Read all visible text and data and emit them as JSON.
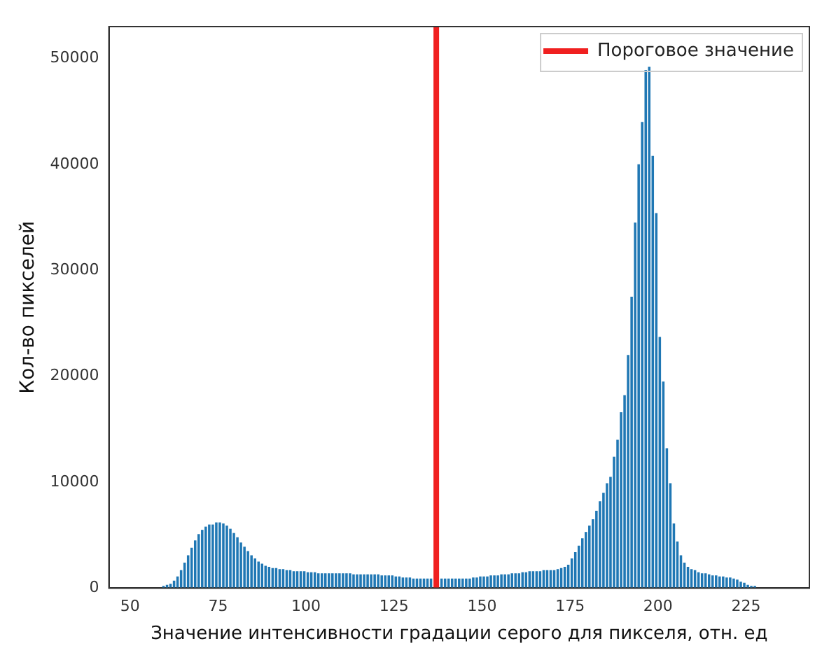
{
  "chart_data": {
    "type": "histogram",
    "xlabel": "Значение интенсивности градации серого для пикселя, отн. ед",
    "ylabel": "Кол-во пикселей",
    "bins": [
      57,
      58,
      59,
      60,
      61,
      62,
      63,
      64,
      65,
      66,
      67,
      68,
      69,
      70,
      71,
      72,
      73,
      74,
      75,
      76,
      77,
      78,
      79,
      80,
      81,
      82,
      83,
      84,
      85,
      86,
      87,
      88,
      89,
      90,
      91,
      92,
      93,
      94,
      95,
      96,
      97,
      98,
      99,
      100,
      101,
      102,
      103,
      104,
      105,
      106,
      107,
      108,
      109,
      110,
      111,
      112,
      113,
      114,
      115,
      116,
      117,
      118,
      119,
      120,
      121,
      122,
      123,
      124,
      125,
      126,
      127,
      128,
      129,
      130,
      131,
      132,
      133,
      134,
      135,
      136,
      137,
      138,
      139,
      140,
      141,
      142,
      143,
      144,
      145,
      146,
      147,
      148,
      149,
      150,
      151,
      152,
      153,
      154,
      155,
      156,
      157,
      158,
      159,
      160,
      161,
      162,
      163,
      164,
      165,
      166,
      167,
      168,
      169,
      170,
      171,
      172,
      173,
      174,
      175,
      176,
      177,
      178,
      179,
      180,
      181,
      182,
      183,
      184,
      185,
      186,
      187,
      188,
      189,
      190,
      191,
      192,
      193,
      194,
      195,
      196,
      197,
      198,
      199,
      200,
      201,
      202,
      203,
      204,
      205,
      206,
      207,
      208,
      209,
      210,
      211,
      212,
      213,
      214,
      215,
      216,
      217,
      218,
      219,
      220,
      221,
      222,
      223,
      224,
      225,
      226,
      227,
      228,
      229,
      230,
      231,
      232,
      233
    ],
    "values": [
      null,
      null,
      200,
      300,
      400,
      700,
      1100,
      1700,
      2400,
      3100,
      3800,
      4500,
      5100,
      5500,
      5800,
      6000,
      6000,
      6200,
      6200,
      6100,
      5900,
      5600,
      5200,
      4800,
      4300,
      3900,
      3500,
      3100,
      2800,
      2500,
      2300,
      2100,
      2000,
      1900,
      1900,
      1800,
      1800,
      1700,
      1700,
      1600,
      1600,
      1600,
      1600,
      1500,
      1500,
      1500,
      1400,
      1400,
      1400,
      1400,
      1400,
      1400,
      1400,
      1400,
      1400,
      1400,
      1300,
      1300,
      1300,
      1300,
      1300,
      1300,
      1300,
      1300,
      1200,
      1200,
      1200,
      1200,
      1100,
      1100,
      1000,
      1000,
      1000,
      900,
      900,
      900,
      900,
      900,
      900,
      null,
      null,
      900,
      900,
      900,
      900,
      900,
      900,
      900,
      900,
      900,
      1000,
      1000,
      1100,
      1100,
      1100,
      1200,
      1200,
      1200,
      1300,
      1300,
      1300,
      1400,
      1400,
      1400,
      1500,
      1500,
      1600,
      1600,
      1600,
      1600,
      1700,
      1700,
      1700,
      1700,
      1800,
      1900,
      2000,
      2200,
      2800,
      3400,
      4000,
      4700,
      5300,
      5900,
      6500,
      7300,
      8200,
      9000,
      9900,
      10500,
      12400,
      14000,
      16600,
      18200,
      22000,
      27500,
      34500,
      40000,
      44000,
      48900,
      49200,
      40800,
      35400,
      23700,
      19500,
      13200,
      9900,
      6100,
      4400,
      3100,
      2400,
      2000,
      1800,
      1700,
      1500,
      1400,
      1400,
      1300,
      1200,
      1200,
      1100,
      1100,
      1000,
      1000,
      900,
      800,
      600,
      500,
      300,
      200,
      200,
      null,
      null,
      null,
      0,
      0
    ],
    "color": "#1f77b4",
    "xlim": [
      44,
      243
    ],
    "ylim": [
      0,
      53000
    ],
    "xticks": [
      50,
      75,
      100,
      125,
      150,
      175,
      200,
      225
    ],
    "yticks": [
      0,
      10000,
      20000,
      30000,
      40000,
      50000
    ],
    "series": [
      {
        "type": "line",
        "name": "Пороговое значение",
        "color": "#f02020",
        "x": [
          137,
          137
        ],
        "values": [
          0,
          53000
        ]
      }
    ],
    "grid": false,
    "legend": "top right"
  }
}
